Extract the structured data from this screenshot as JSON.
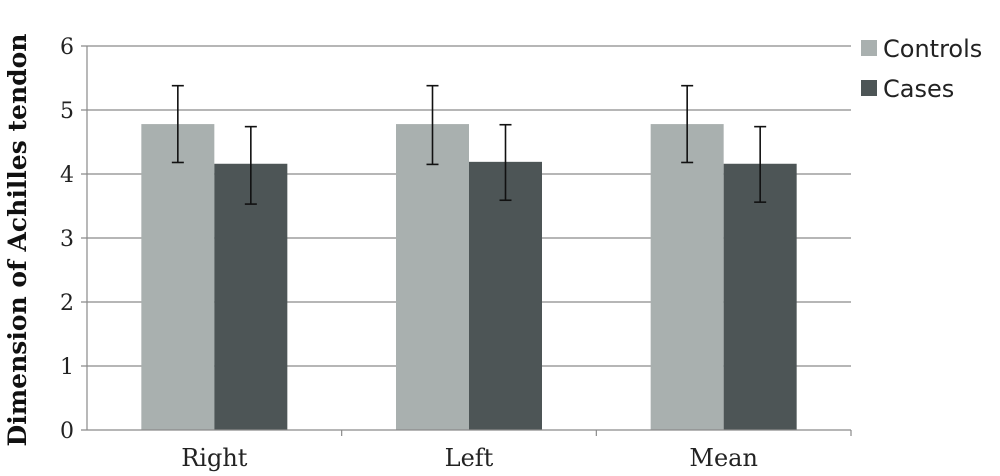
{
  "chart_data": {
    "type": "bar",
    "ylabel": "Dimension of Achilles tendon",
    "xlabel": "",
    "ylim": [
      0,
      6
    ],
    "yticks": [
      0,
      1,
      2,
      3,
      4,
      5,
      6
    ],
    "grid": true,
    "legend_position": "top-right",
    "categories": [
      "Right",
      "Left",
      "Mean"
    ],
    "series": [
      {
        "name": "Controls",
        "color": "#a9b0af",
        "values": [
          4.78,
          4.78,
          4.78
        ],
        "error_low": [
          4.18,
          4.15,
          4.18
        ],
        "error_high": [
          5.38,
          5.38,
          5.38
        ]
      },
      {
        "name": "Cases",
        "color": "#4d5556",
        "values": [
          4.16,
          4.19,
          4.16
        ],
        "error_low": [
          3.53,
          3.59,
          3.56
        ],
        "error_high": [
          4.74,
          4.77,
          4.74
        ]
      }
    ]
  }
}
